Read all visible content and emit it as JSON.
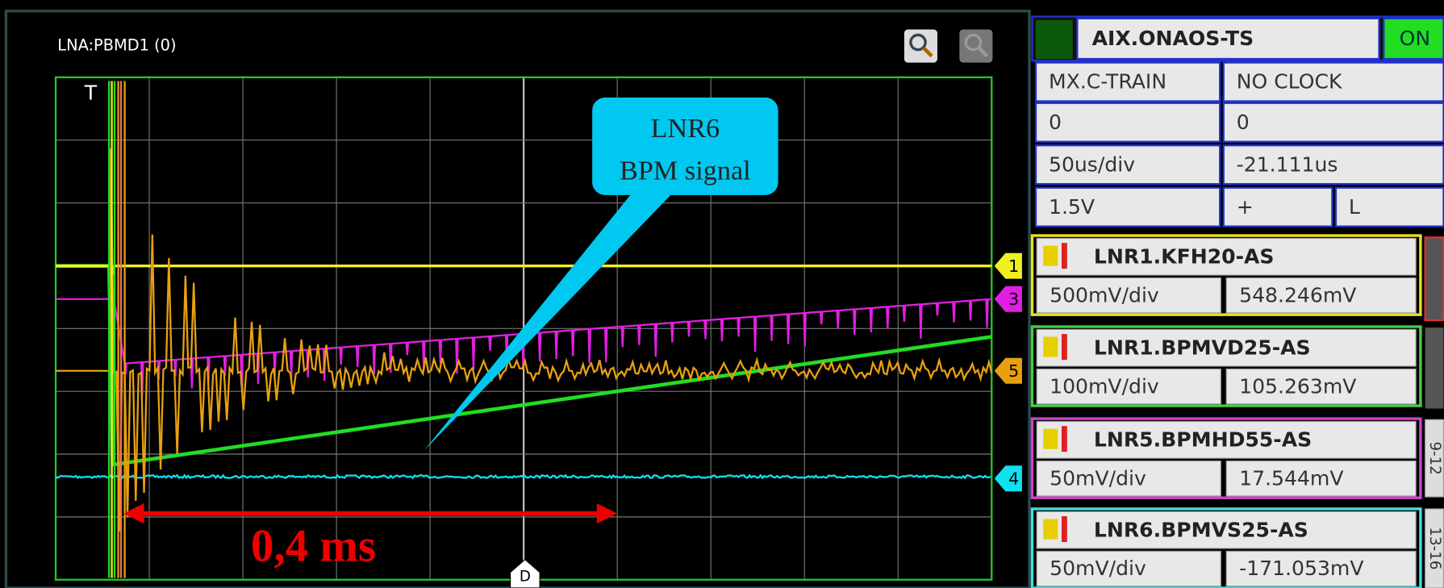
{
  "plot": {
    "title": "LNA:PBMD1 (0)",
    "trigger": "T",
    "time_marker": "D",
    "channel_markers": [
      "1",
      "3",
      "5",
      "4"
    ],
    "callout": [
      "LNR6",
      "BPM signal"
    ],
    "measurement": "0,4 ms"
  },
  "panel": {
    "header": {
      "name": "AIX.ONAOS-TS",
      "status": "ON"
    },
    "rows": [
      [
        "MX.C-TRAIN",
        "NO CLOCK"
      ],
      [
        "0",
        "0"
      ],
      [
        "50us/div",
        "-21.111us"
      ],
      [
        "1.5V",
        "+",
        "L"
      ]
    ],
    "channels": [
      {
        "name": "LNR1.KFH20-AS",
        "scale": "500mV/div",
        "offset": "548.246mV"
      },
      {
        "name": "LNR1.BPMVD25-AS",
        "scale": "100mV/div",
        "offset": "105.263mV"
      },
      {
        "name": "LNR5.BPMHD55-AS",
        "scale": "50mV/div",
        "offset": "17.544mV"
      },
      {
        "name": "LNR6.BPMVS25-AS",
        "scale": "50mV/div",
        "offset": "-171.053mV"
      }
    ],
    "tabs": [
      "9-12",
      "13-16"
    ]
  }
}
